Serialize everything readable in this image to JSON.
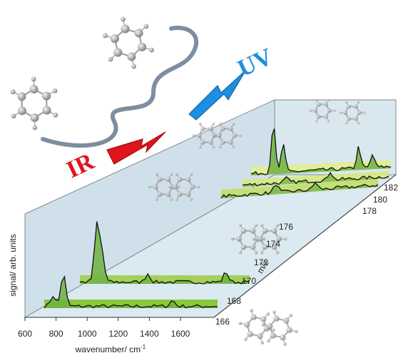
{
  "labels": {
    "ir": "IR",
    "uv": "UV"
  },
  "x_axis": {
    "title": "wavenumber/ cm",
    "title_sup": "-1",
    "ticks": [
      600,
      800,
      1000,
      1200,
      1400,
      1600
    ]
  },
  "y_axis": {
    "title": "signal/ arb. units"
  },
  "z_axis": {
    "title": "m/z",
    "ticks": [
      166,
      168,
      170,
      172,
      174,
      176,
      178,
      180,
      182
    ]
  }
}
